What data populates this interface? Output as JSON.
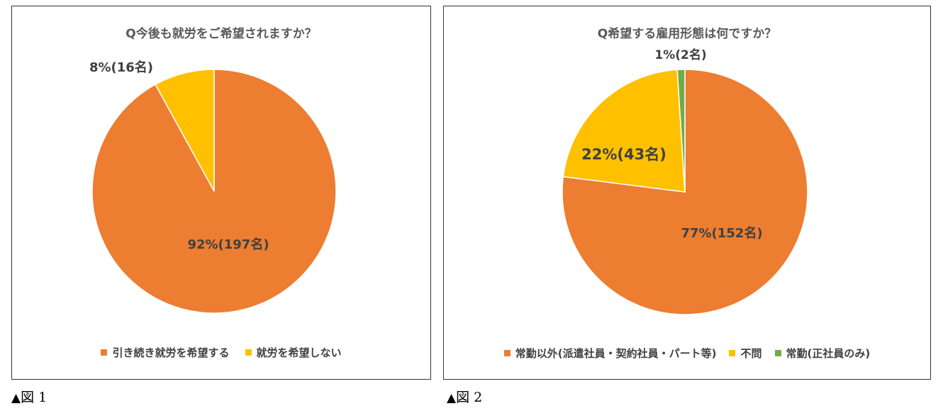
{
  "colors": {
    "orange": "#ED7D31",
    "yellow": "#FFC000",
    "green": "#70AD47"
  },
  "chart_data": [
    {
      "type": "pie",
      "title": "Q今後も就労をご希望されますか？",
      "categories": [
        "引き続き就労を希望する",
        "就労を希望しない"
      ],
      "values": [
        92,
        8
      ],
      "counts": [
        197,
        16
      ],
      "data_labels": [
        "92%(197名)",
        "8%(16名)"
      ],
      "legend_position": "bottom",
      "caption": "図 1"
    },
    {
      "type": "pie",
      "title": "Q希望する雇用形態は何ですか？",
      "categories": [
        "常勤以外(派遣社員・契約社員・パート等)",
        "不問",
        "常勤(正社員のみ)"
      ],
      "values": [
        77,
        22,
        1
      ],
      "counts": [
        152,
        43,
        2
      ],
      "data_labels": [
        "77%(152名)",
        "22%(43名)",
        "1%(2名)"
      ],
      "legend_position": "bottom",
      "caption": "図 2"
    }
  ]
}
